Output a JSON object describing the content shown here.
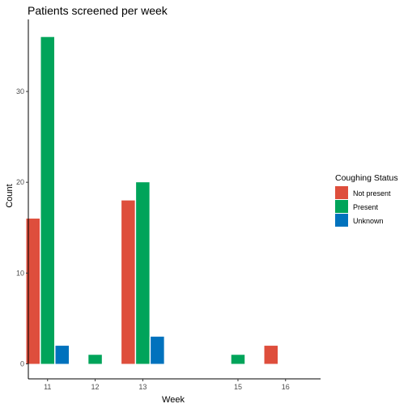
{
  "chart_data": {
    "type": "bar",
    "title": "Patients screened per week",
    "xlabel": "Week",
    "ylabel": "Count",
    "x": [
      11,
      12,
      13,
      15,
      16
    ],
    "xlim": [
      10,
      17
    ],
    "ylim": [
      0,
      37.8
    ],
    "yticks": [
      0,
      10,
      20,
      30
    ],
    "grid": false,
    "legend": {
      "title": "Coughing Status",
      "placement": "right"
    },
    "series": [
      {
        "name": "Not present",
        "color": "#de4e3c",
        "values": [
          16,
          null,
          18,
          null,
          2
        ]
      },
      {
        "name": "Present",
        "color": "#00a45a",
        "values": [
          36,
          1,
          20,
          1,
          null
        ]
      },
      {
        "name": "Unknown",
        "color": "#0072bd",
        "values": [
          2,
          null,
          3,
          null,
          null
        ]
      }
    ]
  }
}
